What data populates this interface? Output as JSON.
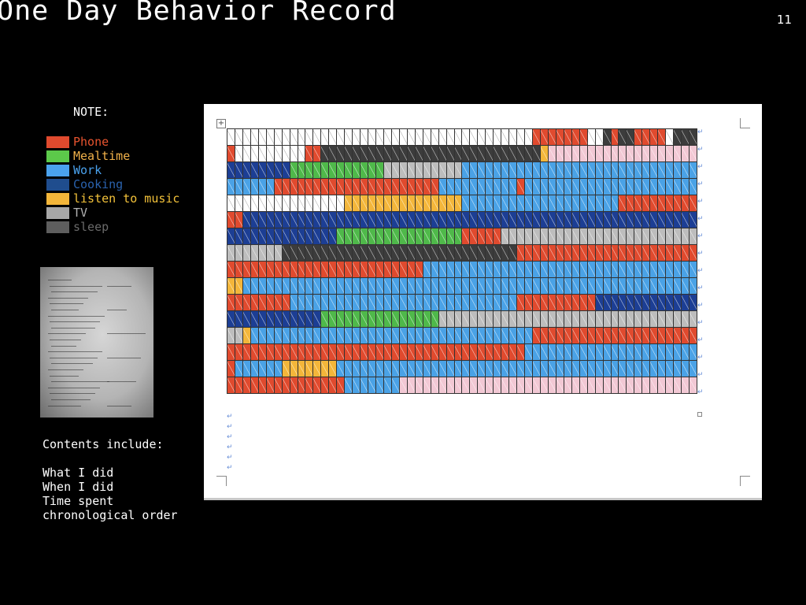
{
  "slide": {
    "title": "One Day Behavior Record",
    "page_number": "11"
  },
  "legend": {
    "heading": "NOTE:",
    "items": [
      {
        "key": "P",
        "label": "Phone",
        "color": "#e04a2e",
        "text_color": "#e8542f"
      },
      {
        "key": "M",
        "label": "Mealtime",
        "color": "#5cc94a",
        "text_color": "#f2b24a"
      },
      {
        "key": "K",
        "label": "Work",
        "color": "#4aa2ee",
        "text_color": "#4aa2ee"
      },
      {
        "key": "C",
        "label": "Cooking",
        "color": "#1f4d8e",
        "text_color": "#2a62ad"
      },
      {
        "key": "L",
        "label": "listen to music",
        "color": "#f3b63a",
        "text_color": "#f3c23a"
      },
      {
        "key": "T",
        "label": "TV",
        "color": "#a7a7a7",
        "text_color": "#b2b2b2"
      },
      {
        "key": "S",
        "label": "sleep",
        "color": "#5e5e5e",
        "text_color": "#6a6a6a"
      }
    ]
  },
  "cell_colors": {
    "W": "#ffffff",
    "P": "#e04a2e",
    "M": "#4fb94a",
    "K": "#4aa2e6",
    "C": "#1c3e94",
    "L": "#f3b63a",
    "T": "#bdbdbd",
    "S": "#3c3c3c",
    "N": "#f2c8d4"
  },
  "record_rows": [
    [
      [
        "W",
        39
      ],
      [
        "P",
        7
      ],
      [
        "W",
        2
      ],
      [
        "S",
        1
      ],
      [
        "P",
        1
      ],
      [
        "S",
        2
      ],
      [
        "P",
        4
      ],
      [
        "W",
        1
      ],
      [
        "S",
        3
      ]
    ],
    [
      [
        "P",
        1
      ],
      [
        "W",
        9
      ],
      [
        "P",
        2
      ],
      [
        "S",
        28
      ],
      [
        "L",
        1
      ],
      [
        "N",
        19
      ]
    ],
    [
      [
        "C",
        8
      ],
      [
        "M",
        12
      ],
      [
        "T",
        10
      ],
      [
        "K",
        30
      ]
    ],
    [
      [
        "K",
        6
      ],
      [
        "P",
        21
      ],
      [
        "K",
        10
      ],
      [
        "P",
        1
      ],
      [
        "K",
        22
      ]
    ],
    [
      [
        "W",
        15
      ],
      [
        "L",
        15
      ],
      [
        "K",
        20
      ],
      [
        "P",
        10
      ]
    ],
    [
      [
        "P",
        2
      ],
      [
        "C",
        58
      ]
    ],
    [
      [
        "C",
        14
      ],
      [
        "M",
        16
      ],
      [
        "P",
        5
      ],
      [
        "T",
        25
      ]
    ],
    [
      [
        "T",
        7
      ],
      [
        "S",
        30
      ],
      [
        "P",
        23
      ]
    ],
    [
      [
        "P",
        25
      ],
      [
        "K",
        35
      ]
    ],
    [
      [
        "L",
        2
      ],
      [
        "K",
        58
      ]
    ],
    [
      [
        "P",
        8
      ],
      [
        "K",
        29
      ],
      [
        "P",
        10
      ],
      [
        "C",
        13
      ]
    ],
    [
      [
        "C",
        12
      ],
      [
        "M",
        15
      ],
      [
        "T",
        33
      ]
    ],
    [
      [
        "T",
        2
      ],
      [
        "L",
        1
      ],
      [
        "K",
        36
      ],
      [
        "P",
        21
      ]
    ],
    [
      [
        "P",
        38
      ],
      [
        "K",
        22
      ]
    ],
    [
      [
        "P",
        1
      ],
      [
        "K",
        6
      ],
      [
        "L",
        7
      ],
      [
        "K",
        46
      ]
    ],
    [
      [
        "P",
        15
      ],
      [
        "K",
        7
      ],
      [
        "N",
        38
      ]
    ]
  ],
  "photo": {
    "description_label": ""
  },
  "contents": {
    "heading": "Contents include:",
    "items": [
      "What I did",
      "When I did",
      "Time spent",
      "chronological order"
    ]
  },
  "doc_marks": {
    "return_glyph": "↵",
    "table_handle": "+"
  }
}
